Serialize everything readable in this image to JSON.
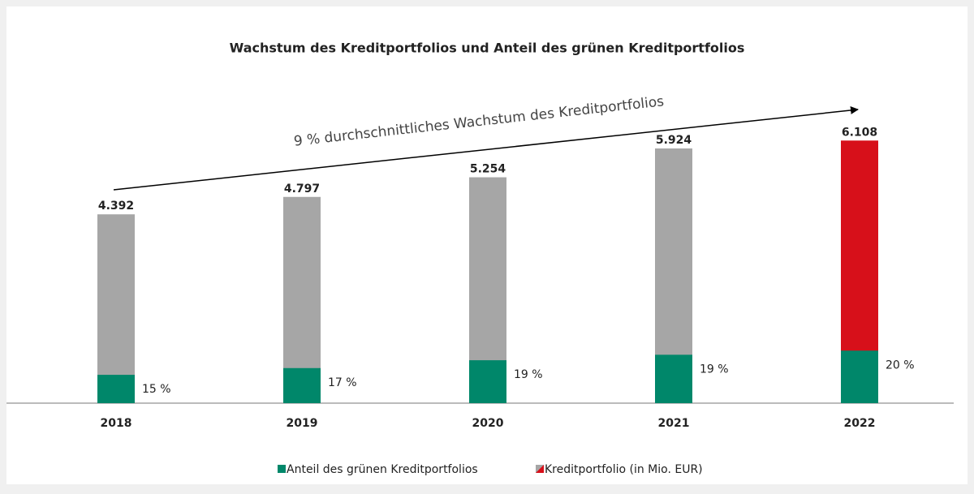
{
  "chart_data": {
    "type": "stacked_share_bar",
    "title": "Wachstum des Kreditportfolios und Anteil des grünen Kreditportfolios",
    "annotation": "9 % durchschnittliches Wachstum des Kreditportfolios",
    "categories": [
      "2018",
      "2019",
      "2020",
      "2021",
      "2022"
    ],
    "ylim": [
      0,
      7000
    ],
    "series": [
      {
        "name": "Anteil des grünen Kreditportfolios",
        "color": "#00876a",
        "values": [
          15,
          17,
          19,
          19,
          20
        ],
        "value_labels": [
          "15 %",
          "17 %",
          "19 %",
          "19 %",
          "20 %"
        ]
      },
      {
        "name": "Kreditportfolio (in Mio. EUR)",
        "color": "#a6a6a6",
        "colors": [
          "#a6a6a6",
          "#a6a6a6",
          "#a6a6a6",
          "#a6a6a6",
          "#d7101a"
        ],
        "values": [
          4392,
          4797,
          5254,
          5924,
          6108
        ],
        "value_labels": [
          "4.392",
          "4.797",
          "5.254",
          "5.924",
          "6.108"
        ]
      }
    ]
  }
}
